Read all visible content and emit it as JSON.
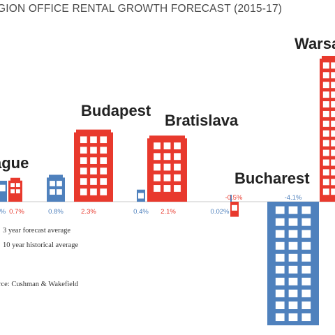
{
  "chart_data": {
    "type": "bar",
    "title": "GION OFFICE RENTAL GROWTH FORECAST (2015-17)",
    "categories": [
      "ague",
      "Budapest",
      "Bratislava",
      "Bucharest",
      "Warsav"
    ],
    "series": [
      {
        "name": "10 year historical average",
        "values": [
          null,
          0.8,
          0.4,
          0.02,
          -4.1
        ],
        "labels": [
          "%",
          "0.8%",
          "0.4%",
          "0.02%",
          "-4.1%"
        ],
        "color": "#4f81bd"
      },
      {
        "name": "3 year forecast average",
        "values": [
          0.7,
          2.3,
          2.1,
          -0.5,
          null
        ],
        "labels": [
          "0.7%",
          "2.3%",
          "2.1%",
          "-0.5%",
          ""
        ],
        "color": "#e8392d"
      }
    ],
    "legend": [
      "3 year forecast average",
      "10 year historical average"
    ],
    "legend_position": "bottom-left",
    "source": "rce: Cushman & Wakefield",
    "colors": {
      "historical": "#4f81bd",
      "forecast": "#e8392d",
      "negative_label": "#e8392d",
      "text": "#333333"
    }
  }
}
